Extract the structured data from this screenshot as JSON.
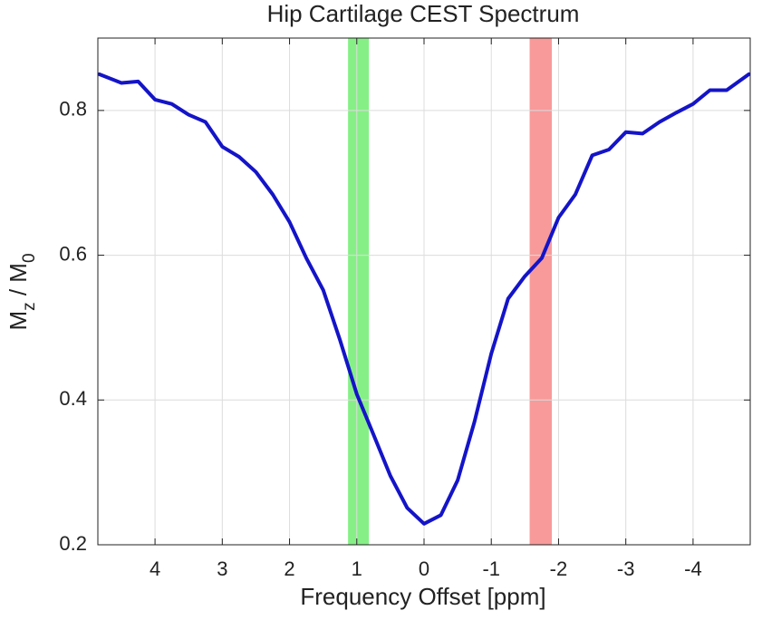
{
  "chart_data": {
    "type": "line",
    "title": "Hip Cartilage CEST Spectrum",
    "xlabel": "Frequency Offset [ppm]",
    "ylabel": [
      {
        "text": "M"
      },
      {
        "text": "z",
        "sub": true
      },
      {
        "text": " / M"
      },
      {
        "text": "0",
        "sub": true
      }
    ],
    "x": [
      4.83,
      4.5,
      4.25,
      4.0,
      3.75,
      3.5,
      3.25,
      3.0,
      2.75,
      2.5,
      2.25,
      2.0,
      1.75,
      1.5,
      1.25,
      1.0,
      0.75,
      0.5,
      0.25,
      0.0,
      -0.25,
      -0.5,
      -0.75,
      -1.0,
      -1.25,
      -1.5,
      -1.75,
      -2.0,
      -2.25,
      -2.5,
      -2.75,
      -3.0,
      -3.25,
      -3.5,
      -3.75,
      -4.0,
      -4.25,
      -4.5,
      -4.83
    ],
    "series": [
      {
        "color": "#1414c8",
        "values": [
          0.85,
          0.838,
          0.84,
          0.815,
          0.809,
          0.794,
          0.784,
          0.75,
          0.736,
          0.715,
          0.684,
          0.646,
          0.596,
          0.552,
          0.483,
          0.408,
          0.352,
          0.295,
          0.251,
          0.229,
          0.241,
          0.289,
          0.37,
          0.464,
          0.54,
          0.571,
          0.596,
          0.652,
          0.684,
          0.738,
          0.746,
          0.77,
          0.768,
          0.784,
          0.797,
          0.809,
          0.828,
          0.828,
          0.85
        ]
      }
    ],
    "spans": [
      {
        "x0": 1.13,
        "x1": 0.82,
        "color": "#86f086"
      },
      {
        "x0": -1.57,
        "x1": -1.9,
        "color": "#f89a9a"
      }
    ],
    "xlim": [
      4.85,
      -4.85
    ],
    "xticks": [
      4,
      3,
      2,
      1,
      0,
      -1,
      -2,
      -3,
      -4
    ],
    "ylim": [
      0.2,
      0.9
    ],
    "yticks": [
      0.2,
      0.4,
      0.6,
      0.8
    ],
    "grid": true
  }
}
